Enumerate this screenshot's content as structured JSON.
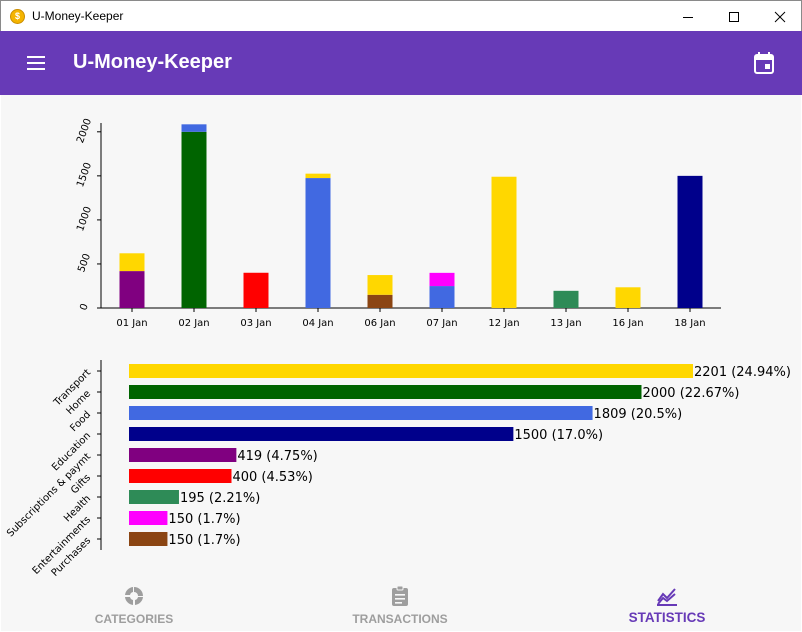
{
  "window": {
    "title": "U-Money-Keeper",
    "icon": "dollar-coin-icon"
  },
  "appbar": {
    "title": "U-Money-Keeper",
    "menu_icon": "hamburger-menu-icon",
    "action_icon": "calendar-icon",
    "color": "#673ab7"
  },
  "chart_data": [
    {
      "type": "bar",
      "stacked": true,
      "categories": [
        "01 Jan",
        "02 Jan",
        "03 Jan",
        "04 Jan",
        "06 Jan",
        "07 Jan",
        "12 Jan",
        "13 Jan",
        "16 Jan",
        "18 Jan"
      ],
      "series": [
        {
          "color": "#800080",
          "values": [
            419,
            0,
            0,
            0,
            0,
            0,
            0,
            0,
            0,
            0
          ]
        },
        {
          "color": "#8b4513",
          "values": [
            0,
            0,
            0,
            0,
            150,
            0,
            0,
            0,
            0,
            0
          ]
        },
        {
          "color": "#006400",
          "values": [
            0,
            2000,
            0,
            0,
            0,
            0,
            0,
            0,
            0,
            0
          ]
        },
        {
          "color": "#ff0000",
          "values": [
            0,
            0,
            400,
            0,
            0,
            0,
            0,
            0,
            0,
            0
          ]
        },
        {
          "color": "#2e8b57",
          "values": [
            0,
            0,
            0,
            0,
            0,
            0,
            0,
            195,
            0,
            0
          ]
        },
        {
          "color": "#00008b",
          "values": [
            0,
            0,
            0,
            0,
            0,
            0,
            0,
            0,
            0,
            1500
          ]
        },
        {
          "color": "#4169e1",
          "values": [
            0,
            85,
            0,
            1475,
            0,
            249,
            0,
            0,
            0,
            0
          ]
        },
        {
          "color": "#ffd700",
          "values": [
            202,
            0,
            0,
            50,
            224,
            0,
            1490,
            0,
            235,
            0
          ]
        },
        {
          "color": "#ff00ff",
          "values": [
            0,
            0,
            0,
            0,
            0,
            150,
            0,
            0,
            0,
            0
          ]
        }
      ],
      "yticks": [
        "0",
        "500",
        "1000",
        "1500",
        "2000"
      ],
      "ylim": [
        0,
        2100
      ]
    },
    {
      "type": "bar",
      "orientation": "horizontal",
      "categories": [
        "Transport",
        "Home",
        "Food",
        "Education",
        "Subscriptions & paymt",
        "Gifts",
        "Health",
        "Entertainments",
        "Purchases"
      ],
      "values": [
        2201,
        2000,
        1809,
        1500,
        419,
        400,
        195,
        150,
        150
      ],
      "data_labels": [
        "2201 (24.94%)",
        "2000 (22.67%)",
        "1809 (20.5%)",
        "1500 (17.0%)",
        "419 (4.75%)",
        "400 (4.53%)",
        "195 (2.21%)",
        "150 (1.7%)",
        "150 (1.7%)"
      ],
      "colors": [
        "#ffd700",
        "#006400",
        "#4169e1",
        "#00008b",
        "#800080",
        "#ff0000",
        "#2e8b57",
        "#ff00ff",
        "#8b4513"
      ],
      "xlim": [
        0,
        2201
      ]
    }
  ],
  "bottom_nav": [
    {
      "label": "CATEGORIES",
      "icon": "categories-donut-icon",
      "active": false
    },
    {
      "label": "TRANSACTIONS",
      "icon": "clipboard-icon",
      "active": false
    },
    {
      "label": "STATISTICS",
      "icon": "line-chart-icon",
      "active": true
    }
  ]
}
